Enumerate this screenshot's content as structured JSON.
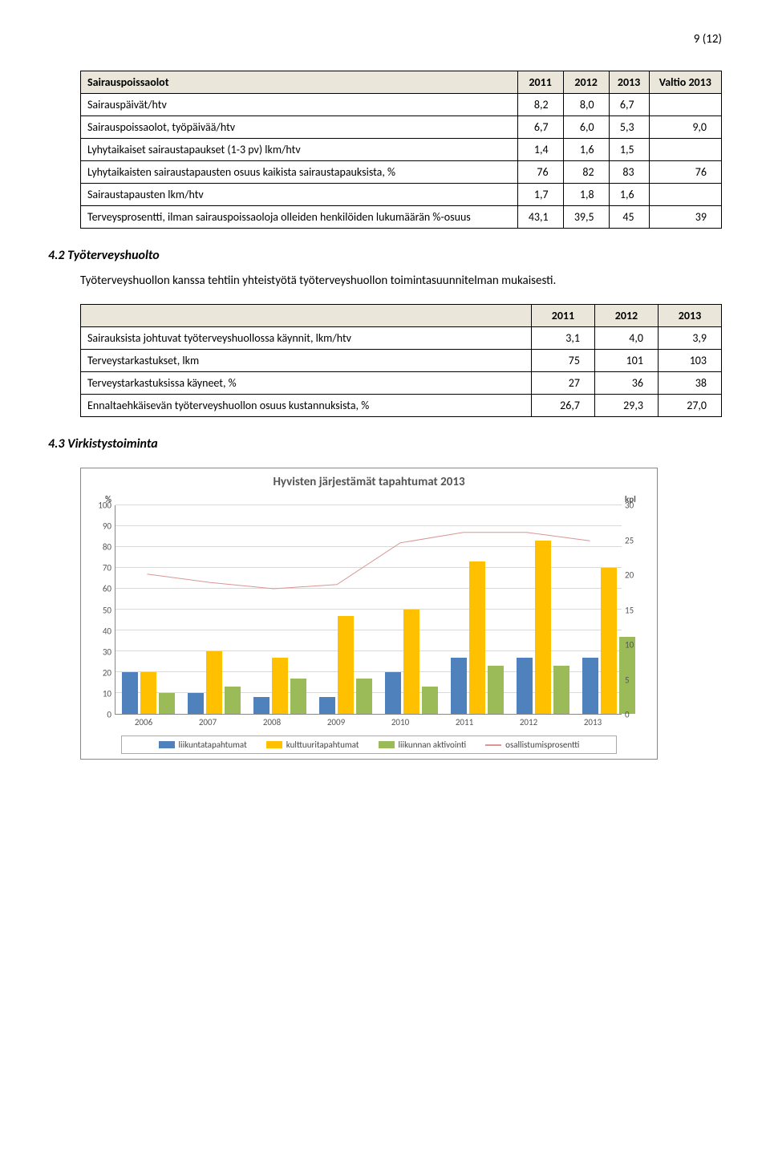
{
  "page_number": "9 (12)",
  "table1": {
    "headers": [
      "Sairauspoissaolot",
      "2011",
      "2012",
      "2013",
      "Valtio 2013"
    ],
    "rows": [
      {
        "label": "Sairauspäivät/htv",
        "v": [
          "8,2",
          "8,0",
          "6,7",
          ""
        ]
      },
      {
        "label": "Sairauspoissaolot, työpäivää/htv",
        "v": [
          "6,7",
          "6,0",
          "5,3",
          "9,0"
        ]
      },
      {
        "label": "Lyhytaikaiset sairaustapaukset (1-3 pv) lkm/htv",
        "v": [
          "1,4",
          "1,6",
          "1,5",
          ""
        ]
      },
      {
        "label": "Lyhytaikaisten sairaustapausten osuus kaikista sairaustapauksista, %",
        "v": [
          "76",
          "82",
          "83",
          "76"
        ]
      },
      {
        "label": "Sairaustapausten lkm/htv",
        "v": [
          "1,7",
          "1,8",
          "1,6",
          ""
        ]
      },
      {
        "label": "Terveysprosentti, ilman sairauspoissaoloja olleiden henkilöiden lukumäärän %-osuus",
        "v": [
          "43,1",
          "39,5",
          "45",
          "39"
        ]
      }
    ]
  },
  "section42_title": "4.2 Työterveyshuolto",
  "section42_body": "Työterveyshuollon kanssa tehtiin yhteistyötä työterveyshuollon toimintasuunnitelman mukaisesti.",
  "table2": {
    "headers": [
      "",
      "2011",
      "2012",
      "2013"
    ],
    "rows": [
      {
        "label": "Sairauksista johtuvat työterveyshuollossa käynnit, lkm/htv",
        "v": [
          "3,1",
          "4,0",
          "3,9"
        ]
      },
      {
        "label": "Terveystarkastukset, lkm",
        "v": [
          "75",
          "101",
          "103"
        ]
      },
      {
        "label": "Terveystarkastuksissa käyneet, %",
        "v": [
          "27",
          "36",
          "38"
        ]
      },
      {
        "label": "Ennaltaehkäisevän työterveyshuollon osuus kustannuksista, %",
        "v": [
          "26,7",
          "29,3",
          "27,0"
        ]
      }
    ]
  },
  "section43_title": "4.3 Virkistystoiminta",
  "chart": {
    "title": "Hyvisten järjestämät tahtumat 2013",
    "title_full": "Hyvisten järjestämät tapahtumat 2013",
    "left_unit": "%",
    "right_unit": "kpl",
    "left_max": 100,
    "right_max": 30,
    "left_ticks": [
      0,
      10,
      20,
      30,
      40,
      50,
      60,
      70,
      80,
      90,
      100
    ],
    "right_ticks": [
      0,
      5,
      10,
      15,
      20,
      25,
      30
    ],
    "years": [
      "2006",
      "2007",
      "2008",
      "2009",
      "2010",
      "2011",
      "2012",
      "2013"
    ],
    "series": {
      "liikuntatapahtumat": {
        "color": "#4f81bd",
        "values": [
          20,
          10,
          8,
          8,
          20,
          27,
          27,
          27
        ]
      },
      "kulttuuritapahtumat": {
        "color": "#ffc000",
        "values": [
          20,
          30,
          27,
          47,
          50,
          73,
          83,
          70
        ]
      },
      "liikunnan_aktivointi": {
        "color": "#9bbb59",
        "values": [
          10,
          13,
          17,
          17,
          13,
          23,
          23,
          37
        ]
      },
      "osallistumisprosentti": {
        "color": "#d99694",
        "values_pct": [
          67,
          63,
          60,
          62,
          82,
          87,
          87,
          83
        ]
      }
    },
    "legend": [
      {
        "label": "liikuntatapahtumat",
        "color": "#4f81bd",
        "type": "box"
      },
      {
        "label": "kulttuuritapahtumat",
        "color": "#ffc000",
        "type": "box"
      },
      {
        "label": "liikunnan aktivointi",
        "color": "#9bbb59",
        "type": "box"
      },
      {
        "label": "osallistumisprosentti",
        "color": "#d99694",
        "type": "line"
      }
    ],
    "grid_color": "#d9d9d9",
    "background": "#ffffff"
  }
}
